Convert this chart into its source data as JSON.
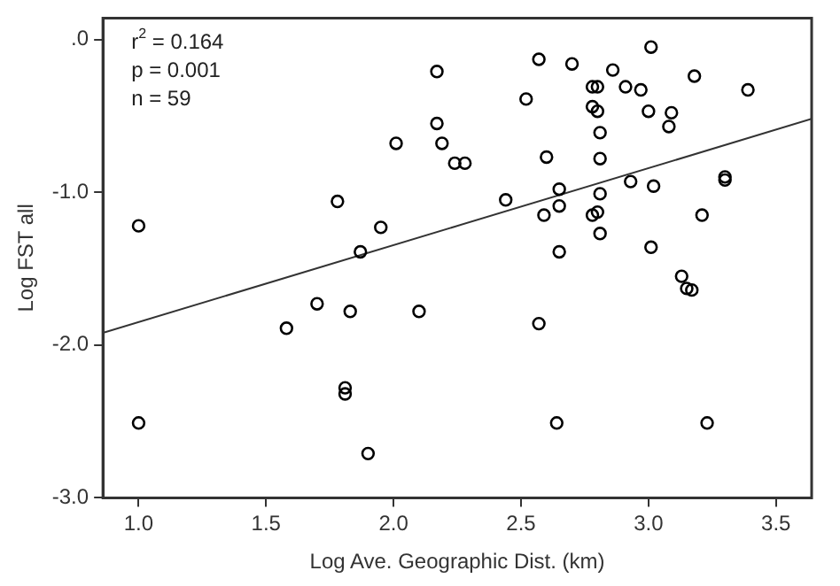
{
  "chart_data": {
    "type": "scatter",
    "xlabel": "Log Ave. Geographic Dist. (km)",
    "ylabel": "Log FST all",
    "annotations": [
      "r$^{2}$ = 0.164",
      "p = 0.001",
      "n = 59"
    ],
    "xlim": [
      0.86,
      3.64
    ],
    "ylim": [
      -3.0,
      0.14
    ],
    "xticks": [
      {
        "value": 1,
        "label": "1.0"
      },
      {
        "value": 1.5,
        "label": "1.5"
      },
      {
        "value": 2,
        "label": "2.0"
      },
      {
        "value": 2.5,
        "label": "2.5"
      },
      {
        "value": 3,
        "label": "3.0"
      },
      {
        "value": 3.5,
        "label": "3.5"
      }
    ],
    "yticks": [
      {
        "value": 0,
        "label": ".0"
      },
      {
        "value": -1,
        "label": "-1.0"
      },
      {
        "value": -2,
        "label": "-2.0"
      },
      {
        "value": -3,
        "label": "-3.0"
      }
    ],
    "grid": false,
    "legend": false,
    "marker": "circle",
    "series": [
      {
        "type": "scatter",
        "color": "#000000",
        "x": [
          1.0,
          2.17,
          2.17,
          2.19,
          2.01,
          1.78,
          1.95,
          1.87,
          2.57,
          2.7,
          3.01,
          2.86,
          2.78,
          2.8,
          2.91,
          2.97,
          3.18,
          3.39,
          2.52,
          2.78,
          2.8,
          3.0,
          3.09,
          3.08,
          2.81,
          2.24,
          2.28,
          2.6,
          2.81,
          2.93,
          3.02,
          3.3,
          3.3,
          2.44,
          2.65,
          2.81,
          2.65,
          2.59,
          2.78,
          2.8,
          2.81,
          3.21,
          2.65,
          3.01,
          3.13,
          3.15,
          3.17,
          2.1,
          2.57,
          2.64,
          3.23,
          1.58,
          1.7,
          1.83,
          1.81,
          1.81,
          1.0,
          1.9
        ],
        "values": [
          -1.22,
          -0.21,
          -0.55,
          -0.68,
          -0.68,
          -1.06,
          -1.23,
          -1.39,
          -0.13,
          -0.16,
          -0.05,
          -0.2,
          -0.31,
          -0.31,
          -0.31,
          -0.33,
          -0.24,
          -0.33,
          -0.39,
          -0.44,
          -0.47,
          -0.47,
          -0.48,
          -0.57,
          -0.61,
          -0.81,
          -0.81,
          -0.77,
          -0.78,
          -0.93,
          -0.96,
          -0.9,
          -0.92,
          -1.05,
          -0.98,
          -1.01,
          -1.09,
          -1.15,
          -1.15,
          -1.13,
          -1.27,
          -1.15,
          -1.39,
          -1.36,
          -1.55,
          -1.63,
          -1.64,
          -1.78,
          -1.86,
          -2.51,
          -2.51,
          -1.89,
          -1.73,
          -1.78,
          -2.28,
          -2.32,
          -2.51,
          -2.71
        ]
      },
      {
        "type": "line",
        "color": "#333333",
        "x": [
          0.86,
          3.64
        ],
        "values": [
          -1.92,
          -0.52
        ],
        "marker": "none",
        "line_style": "solid"
      }
    ]
  }
}
